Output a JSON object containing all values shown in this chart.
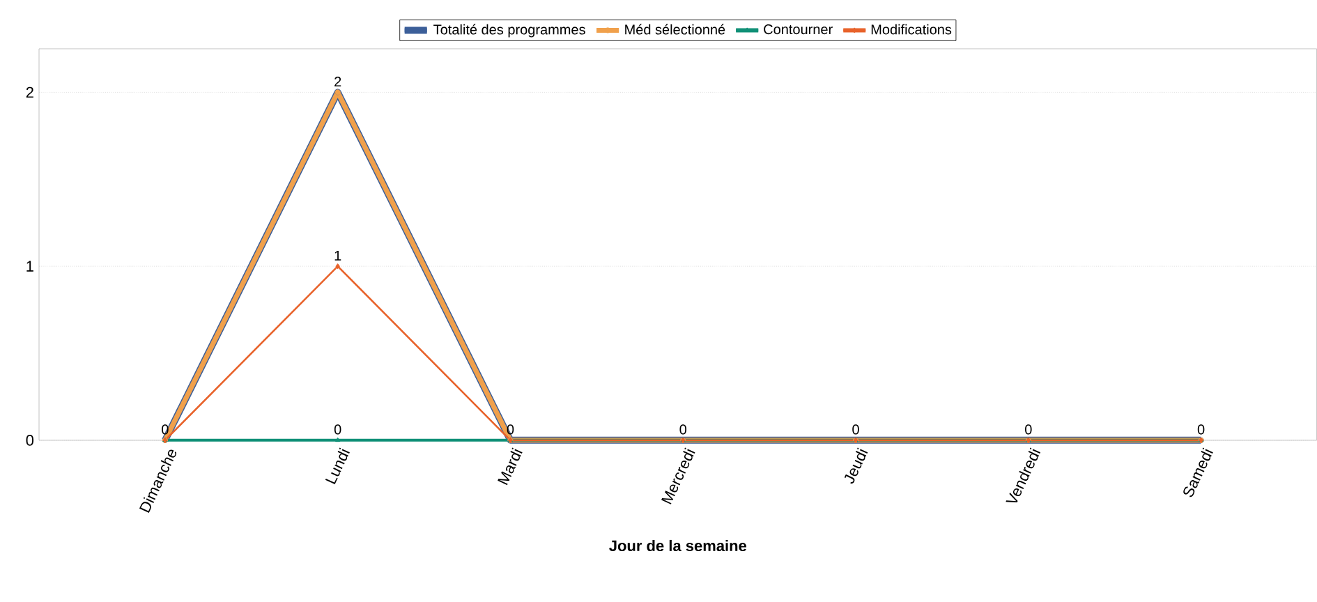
{
  "chart_data": {
    "type": "line",
    "xlabel": "Jour de la semaine",
    "categories": [
      "Dimanche",
      "Lundi",
      "Mardi",
      "Mercredi",
      "Jeudi",
      "Vendredi",
      "Samedi"
    ],
    "series": [
      {
        "name": "Totalité des programmes",
        "color": "#3c5f99",
        "marker": "circle",
        "values": [
          0,
          2,
          0,
          0,
          0,
          0,
          0
        ],
        "value_labels": [
          null,
          "2",
          null,
          null,
          null,
          null,
          null
        ]
      },
      {
        "name": "Méd sélectionné",
        "color": "#f0a04b",
        "marker": "circle",
        "values": [
          0,
          2,
          0,
          0,
          0,
          0,
          0
        ]
      },
      {
        "name": "Contourner",
        "color": "#109077",
        "marker": "triangle",
        "values": [
          0,
          0,
          0,
          0,
          0,
          0,
          0
        ],
        "value_labels": [
          "0",
          "0",
          "0",
          "0",
          "0",
          "0",
          "0"
        ]
      },
      {
        "name": "Modifications",
        "color": "#e8622a",
        "marker": "diamond",
        "values": [
          0,
          1,
          0,
          0,
          0,
          0,
          0
        ],
        "value_labels": [
          null,
          "1",
          null,
          null,
          null,
          null,
          null
        ]
      }
    ],
    "ylim": [
      0,
      2.25
    ],
    "yticks": [
      0,
      1,
      2
    ],
    "grid": "y",
    "legend": "top"
  }
}
